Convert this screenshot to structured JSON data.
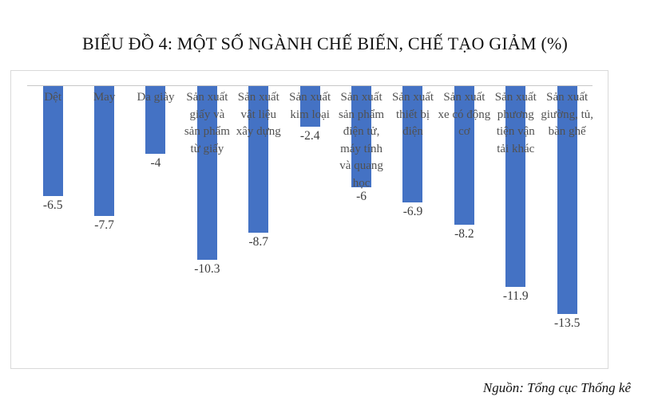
{
  "chart_data": {
    "type": "bar",
    "title": "BIỂU ĐỒ 4: MỘT SỐ NGÀNH CHẾ BIẾN, CHẾ TẠO GIẢM (%)",
    "categories": [
      "Dệt",
      "May",
      "Da giày",
      "Sản xuất giấy và sản phẩm từ giấy",
      "Sản xuất vật liệu xây dựng",
      "Sản xuất kim loại",
      "Sản xuất sản phẩm điện tử, máy tính và quang học",
      "Sản xuất thiết bị điện",
      "Sản xuất xe có động cơ",
      "Sản xuất phương tiện vận tải khác",
      "Sản xuất giường, tủ, bàn ghế"
    ],
    "values": [
      -6.5,
      -7.7,
      -4,
      -10.3,
      -8.7,
      -2.4,
      -6,
      -6.9,
      -8.2,
      -11.9,
      -13.5
    ],
    "value_labels": [
      "-6.5",
      "-7.7",
      "-4",
      "-10.3",
      "-8.7",
      "-2.4",
      "-6",
      "-6.9",
      "-8.2",
      "-11.9",
      "-13.5"
    ],
    "xlabel": "",
    "ylabel": "",
    "ylim": [
      -17,
      0
    ],
    "grid": "off",
    "legend": "none",
    "bar_color": "#4472C4",
    "category_label_color": "#515151",
    "value_label_color": "#3b3b3b"
  },
  "source_note": "Nguồn: Tổng cục Thống kê"
}
